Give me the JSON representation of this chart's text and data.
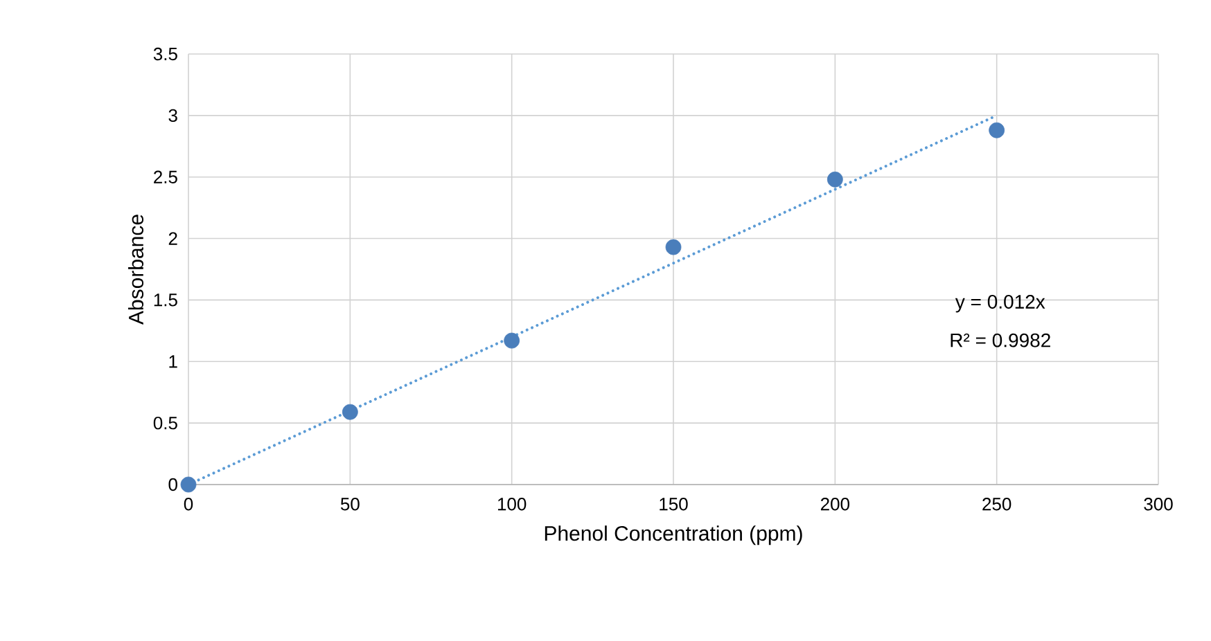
{
  "chart_data": {
    "type": "scatter",
    "xlabel": "Phenol Concentration (ppm)",
    "ylabel": "Absorbance",
    "x": [
      0,
      50,
      100,
      150,
      200,
      250
    ],
    "series": [
      {
        "color": "#4a7ebb",
        "marker": "circle",
        "values": [
          0,
          0.59,
          1.17,
          1.93,
          2.48,
          2.88
        ]
      },
      {
        "type": "line",
        "color": "#5b9bd5",
        "line_style": "dotted",
        "marker": "none",
        "x": [
          0,
          250
        ],
        "values": [
          0,
          3.0
        ]
      }
    ],
    "annotations": [
      "y = 0.012x",
      "R² = 0.9982"
    ],
    "xlim": [
      0,
      300
    ],
    "xticks": [
      0,
      50,
      100,
      150,
      200,
      250,
      300
    ],
    "ylim": [
      0,
      3.5
    ],
    "yticks": [
      0,
      0.5,
      1,
      1.5,
      2,
      2.5,
      3,
      3.5
    ],
    "grid": true
  }
}
